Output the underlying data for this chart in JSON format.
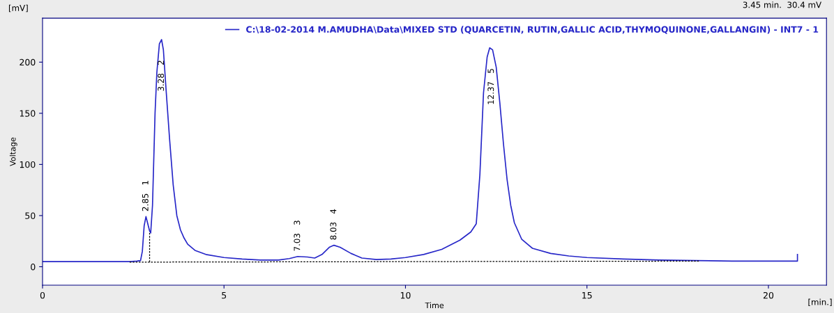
{
  "chart_data": {
    "type": "line",
    "xlabel": "Time",
    "ylabel": "Voltage",
    "xlim": [
      0,
      21.6
    ],
    "ylim": [
      -18,
      243
    ],
    "xticks": [
      0,
      5,
      10,
      15,
      20
    ],
    "yticks": [
      0,
      50,
      100,
      150,
      200
    ],
    "grid": false,
    "legend": "top right",
    "marker": "none",
    "series": [
      {
        "name": "C:\\18-02-2014 M.AMUDHA\\Data\\MIXED STD (QUARCETIN, RUTIN,GALLIC ACID,THYMOQUINONE,GALLANGIN) - INT7 - 1",
        "color": "#2626c8",
        "line_style": "solid",
        "x": [
          0,
          2.4,
          2.6,
          2.7,
          2.75,
          2.8,
          2.85,
          2.9,
          2.95,
          2.98,
          3.03,
          3.1,
          3.15,
          3.22,
          3.28,
          3.33,
          3.4,
          3.5,
          3.6,
          3.7,
          3.8,
          3.9,
          4.0,
          4.2,
          4.5,
          5.0,
          5.5,
          6.0,
          6.5,
          6.8,
          7.03,
          7.3,
          7.5,
          7.7,
          7.9,
          8.03,
          8.2,
          8.5,
          8.8,
          9.2,
          9.6,
          10,
          10.5,
          11,
          11.5,
          11.8,
          11.95,
          12.05,
          12.15,
          12.25,
          12.32,
          12.4,
          12.5,
          12.6,
          12.7,
          12.8,
          12.9,
          13.0,
          13.2,
          13.5,
          14,
          14.5,
          15,
          16,
          17,
          18,
          19,
          20,
          20.8,
          20.8
        ],
        "values": [
          5,
          5,
          5.5,
          6,
          15,
          40,
          49,
          42,
          35,
          33,
          60,
          150,
          190,
          218,
          222,
          212,
          175,
          125,
          80,
          50,
          36,
          28,
          22,
          16,
          12,
          9,
          7.5,
          6.5,
          6.5,
          8,
          10,
          9.5,
          8.5,
          12,
          19,
          21,
          19,
          13,
          8.5,
          7,
          7.5,
          9,
          12,
          17,
          26,
          34,
          42,
          90,
          170,
          205,
          214,
          212,
          195,
          160,
          120,
          85,
          60,
          43,
          27,
          18,
          13,
          10.5,
          9,
          7.5,
          6.5,
          6,
          5.5,
          5.5,
          5.5,
          12
        ]
      },
      {
        "color": "#000000",
        "line_style": "dashed",
        "x": [
          2.4,
          18.1
        ],
        "values": [
          4.5,
          5.5
        ]
      },
      {
        "color": "#000000",
        "line_style": "dashed",
        "x": [
          2.95,
          2.95
        ],
        "values": [
          4.6,
          33
        ]
      }
    ],
    "annotations": [
      "[mV]",
      "[min.]",
      "3.45 min.  30.4 mV",
      {
        "text": "2.85   1",
        "x": 2.85,
        "y": 49
      },
      {
        "text": "3.28   2",
        "x": 3.28,
        "y": 222
      },
      {
        "text": "7.03   3",
        "x": 7.03,
        "y": 10
      },
      {
        "text": "8.03   4",
        "x": 8.03,
        "y": 21
      },
      {
        "text": "12.37   5",
        "x": 12.37,
        "y": 214
      }
    ]
  }
}
